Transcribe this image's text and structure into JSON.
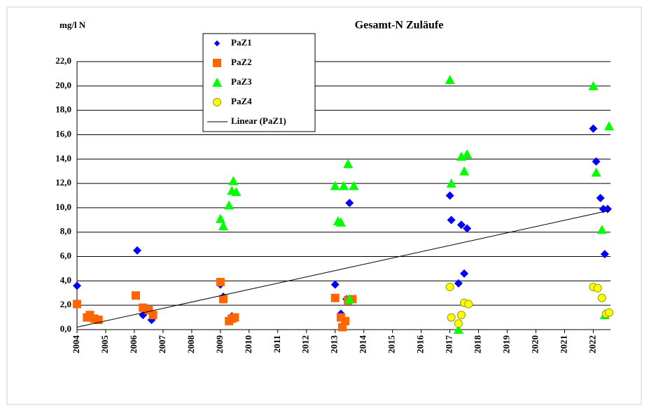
{
  "chart_data": {
    "type": "scatter",
    "title": "Gesamt-N Zuläufe",
    "y_label": "mg/l N",
    "xlim": [
      2004,
      2022.6
    ],
    "xticks": [
      2004,
      2005,
      2006,
      2007,
      2008,
      2009,
      2010,
      2011,
      2012,
      2013,
      2014,
      2015,
      2016,
      2017,
      2018,
      2019,
      2020,
      2021,
      2022
    ],
    "ylim": [
      0,
      22
    ],
    "yticks": [
      {
        "value": 0,
        "label": "0,0"
      },
      {
        "value": 2,
        "label": "2,0"
      },
      {
        "value": 4,
        "label": "4,0"
      },
      {
        "value": 6,
        "label": "6,0"
      },
      {
        "value": 8,
        "label": "8,0"
      },
      {
        "value": 10,
        "label": "10,0"
      },
      {
        "value": 12,
        "label": "12,0"
      },
      {
        "value": 14,
        "label": "14,0"
      },
      {
        "value": 16,
        "label": "16,0"
      },
      {
        "value": 18,
        "label": "18,0"
      },
      {
        "value": 20,
        "label": "20,0"
      },
      {
        "value": 22,
        "label": "22,0"
      }
    ],
    "grid": true,
    "series": [
      {
        "name": "PaZ1",
        "color": "#0000ff",
        "marker": "diamond",
        "x": [
          2004.0,
          2004.5,
          2004.7,
          2006.1,
          2006.3,
          2006.6,
          2009.0,
          2009.1,
          2009.4,
          2013.0,
          2013.2,
          2013.5,
          2013.4,
          2017.0,
          2017.05,
          2017.3,
          2017.4,
          2017.5,
          2017.6,
          2022.0,
          2022.1,
          2022.25,
          2022.35,
          2022.5,
          2022.4
        ],
        "values": [
          3.6,
          0.9,
          0.8,
          6.5,
          1.2,
          0.8,
          3.7,
          2.7,
          1.1,
          3.7,
          1.3,
          10.4,
          2.5,
          11.0,
          9.0,
          3.8,
          8.6,
          4.6,
          8.3,
          16.5,
          13.8,
          10.8,
          9.9,
          9.9,
          6.2
        ]
      },
      {
        "name": "PaZ2",
        "color": "#ff6600",
        "marker": "square",
        "x": [
          2004.0,
          2004.35,
          2004.45,
          2004.6,
          2004.75,
          2006.05,
          2006.3,
          2006.5,
          2006.65,
          2009.0,
          2009.1,
          2009.3,
          2009.4,
          2009.5,
          2013.0,
          2013.2,
          2013.25,
          2013.35,
          2013.45,
          2013.6
        ],
        "values": [
          2.1,
          1.0,
          1.2,
          0.9,
          0.8,
          2.8,
          1.8,
          1.6,
          1.2,
          3.9,
          2.5,
          0.7,
          0.9,
          1.0,
          2.6,
          1.0,
          0.2,
          0.7,
          2.4,
          2.5
        ]
      },
      {
        "name": "PaZ3",
        "color": "#00ff00",
        "marker": "triangle",
        "x": [
          2009.0,
          2009.1,
          2009.3,
          2009.4,
          2009.45,
          2009.55,
          2013.0,
          2013.1,
          2013.2,
          2013.3,
          2013.45,
          2013.65,
          2013.5,
          2017.0,
          2017.05,
          2017.3,
          2017.4,
          2017.5,
          2017.6,
          2022.0,
          2022.1,
          2022.3,
          2022.4,
          2022.55
        ],
        "values": [
          9.1,
          8.5,
          10.2,
          11.4,
          12.2,
          11.3,
          11.8,
          8.9,
          8.8,
          11.8,
          13.6,
          11.8,
          2.5,
          20.5,
          12.0,
          0.0,
          14.2,
          13.0,
          14.4,
          20.0,
          12.9,
          8.2,
          1.2,
          16.7
        ]
      },
      {
        "name": "PaZ4",
        "color": "#ffff00",
        "marker": "circle",
        "x": [
          2017.0,
          2017.05,
          2017.3,
          2017.4,
          2017.5,
          2017.65,
          2022.0,
          2022.15,
          2022.3,
          2022.45,
          2022.55
        ],
        "values": [
          3.5,
          1.0,
          0.5,
          1.2,
          2.2,
          2.1,
          3.5,
          3.4,
          2.6,
          1.3,
          1.4
        ]
      },
      {
        "name": "Linear (PaZ1)",
        "color": "#000000",
        "marker": "line",
        "x": [
          2004,
          2022.6
        ],
        "values": [
          0.2,
          9.8
        ]
      }
    ]
  }
}
